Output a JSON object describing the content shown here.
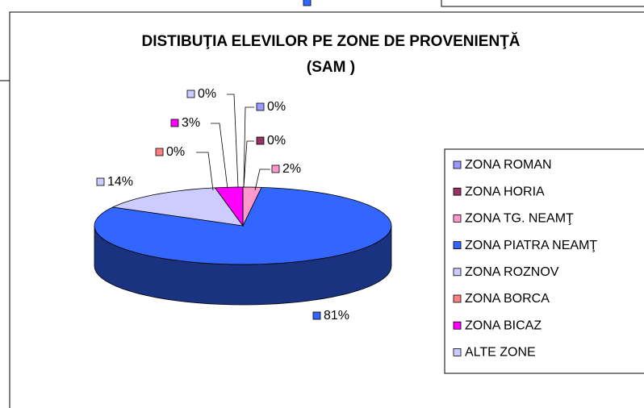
{
  "chart_data": {
    "type": "pie3d",
    "title": "DISTIBUŢIA ELEVILOR PE ZONE DE PROVENIENŢĂ",
    "subtitle": "(SAM )",
    "categories": [
      "ZONA ROMAN",
      "ZONA HORIA",
      "ZONA TG. NEAMŢ",
      "ZONA PIATRA NEAMŢ",
      "ZONA ROZNOV",
      "ZONA BORCA",
      "ZONA BICAZ",
      "ALTE ZONE"
    ],
    "values": [
      0,
      0,
      2,
      81,
      14,
      0,
      3,
      0
    ],
    "value_labels": [
      "0%",
      "0%",
      "2%",
      "81%",
      "14%",
      "0%",
      "3%",
      "0%"
    ],
    "colors": [
      "#9999ff",
      "#993366",
      "#ff99cc",
      "#3366ff",
      "#ccccff",
      "#ff8080",
      "#ff00ff",
      "#ccccff"
    ],
    "legend": "right"
  }
}
